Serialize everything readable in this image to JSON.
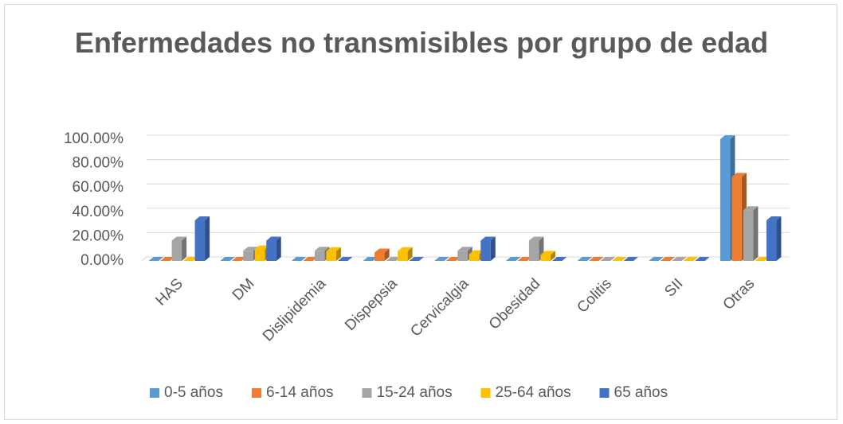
{
  "chart_data": {
    "type": "bar3d",
    "title": "Enfermedades no transmisibles por grupo de edad",
    "categories": [
      "HAS",
      "DM",
      "Dislipidemia",
      "Dispepsia",
      "Cervicalgia",
      "Obesidad",
      "Colitis",
      "SII",
      "Otras"
    ],
    "series": [
      {
        "name": "0-5 años",
        "color": "#5b9bd5",
        "values": [
          0,
          0,
          0,
          0,
          0,
          0,
          0,
          0,
          100
        ]
      },
      {
        "name": "6-14 años",
        "color": "#ed7d31",
        "values": [
          0,
          0,
          0,
          6.9,
          0,
          0,
          0,
          0,
          69
        ]
      },
      {
        "name": "15-24 años",
        "color": "#a5a5a5",
        "values": [
          16.7,
          8.3,
          8.3,
          0,
          8.3,
          16.7,
          0,
          0,
          41.7
        ]
      },
      {
        "name": "25-64 años",
        "color": "#ffc000",
        "values": [
          0,
          9.5,
          8,
          8,
          5.5,
          5,
          0,
          0,
          0
        ]
      },
      {
        "name": "65 años",
        "color": "#4472c4",
        "values": [
          33.3,
          16.7,
          0,
          0,
          16.7,
          0,
          0,
          0,
          33.3
        ]
      }
    ],
    "ylim": [
      0,
      100
    ],
    "yticks": [
      {
        "value": 0,
        "label": "0.00%"
      },
      {
        "value": 20,
        "label": "20.00%"
      },
      {
        "value": 40,
        "label": "40.00%"
      },
      {
        "value": 60,
        "label": "60.00%"
      },
      {
        "value": 80,
        "label": "80.00%"
      },
      {
        "value": 100,
        "label": "100.00%"
      }
    ],
    "grid": true,
    "legend": "bottom"
  }
}
